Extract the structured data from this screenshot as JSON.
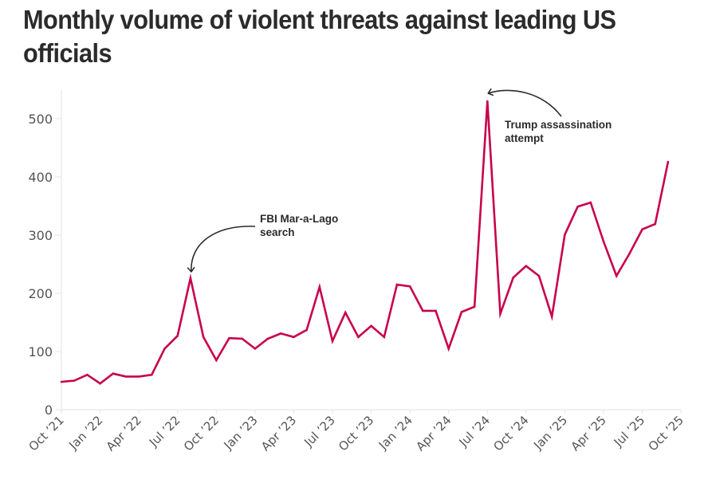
{
  "chart_data": {
    "type": "line",
    "title": "Monthly volume of violent threats against leading US officials",
    "xlabel": "",
    "ylabel": "",
    "ylim": [
      0,
      550
    ],
    "yticks": [
      0,
      100,
      200,
      300,
      400,
      500
    ],
    "xlim": [
      "2021-10",
      "2025-10"
    ],
    "grid": false,
    "x_tick_labels": [
      "Oct ’21",
      "Jan ’22",
      "Apr ’22",
      "Jul ’22",
      "Oct ’22",
      "Jan ’23",
      "Apr ’23",
      "Jul ’23",
      "Oct ’23",
      "Jan ’24",
      "Apr ’24",
      "Jul ’24",
      "Oct ’24",
      "Jan ’25",
      "Apr ’25",
      "Jul ’25",
      "Oct ’25"
    ],
    "x_tick_month_index": [
      0,
      3,
      6,
      9,
      12,
      15,
      18,
      21,
      24,
      27,
      30,
      33,
      36,
      39,
      42,
      45,
      48
    ],
    "series": [
      {
        "name": "Violent threats",
        "color": "#c8004c",
        "x": [
          "2021-10",
          "2021-11",
          "2021-12",
          "2022-01",
          "2022-02",
          "2022-03",
          "2022-04",
          "2022-05",
          "2022-06",
          "2022-07",
          "2022-08",
          "2022-09",
          "2022-10",
          "2022-11",
          "2022-12",
          "2023-01",
          "2023-02",
          "2023-03",
          "2023-04",
          "2023-05",
          "2023-06",
          "2023-07",
          "2023-08",
          "2023-09",
          "2023-10",
          "2023-11",
          "2023-12",
          "2024-01",
          "2024-02",
          "2024-03",
          "2024-04",
          "2024-05",
          "2024-06",
          "2024-07",
          "2024-08",
          "2024-09",
          "2024-10",
          "2024-11",
          "2024-12",
          "2025-01",
          "2025-02",
          "2025-03",
          "2025-04",
          "2025-05",
          "2025-06",
          "2025-07",
          "2025-08",
          "2025-09"
        ],
        "values": [
          48,
          50,
          60,
          45,
          62,
          57,
          57,
          60,
          105,
          127,
          226,
          125,
          85,
          123,
          122,
          105,
          122,
          131,
          125,
          137,
          211,
          118,
          167,
          125,
          144,
          125,
          215,
          212,
          170,
          170,
          105,
          168,
          177,
          530,
          165,
          227,
          247,
          230,
          160,
          301,
          349,
          356,
          289,
          230,
          268,
          310,
          319,
          426
        ]
      }
    ],
    "annotations": [
      {
        "text_lines": [
          "FBI Mar-a-Lago",
          "search"
        ],
        "target": "2022-08",
        "value": 226
      },
      {
        "text_lines": [
          "Trump assassination",
          "attempt"
        ],
        "target": "2024-07",
        "value": 530
      }
    ]
  }
}
